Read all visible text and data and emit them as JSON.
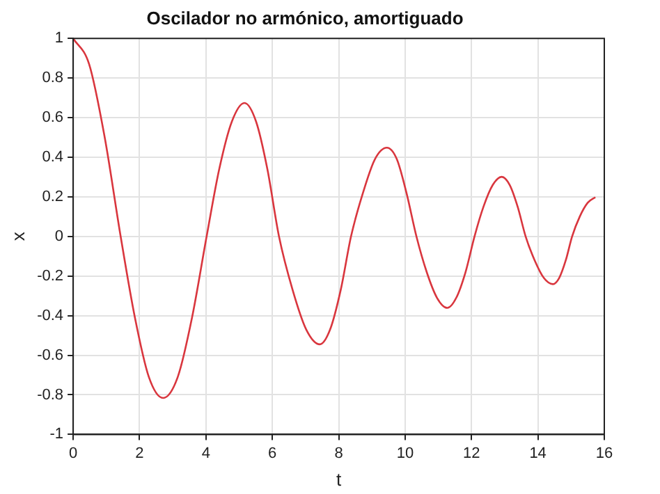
{
  "chart_data": {
    "type": "line",
    "title": "Oscilador no armónico, amortiguado",
    "xlabel": "t",
    "ylabel": "x",
    "x": [
      0,
      0.48,
      0.95,
      1.43,
      1.86,
      2.28,
      2.71,
      3.15,
      3.58,
      4.02,
      4.4,
      4.78,
      5.16,
      5.51,
      5.85,
      6.2,
      6.61,
      7.02,
      7.43,
      7.74,
      8.06,
      8.37,
      8.73,
      9.09,
      9.45,
      9.75,
      10.04,
      10.34,
      10.65,
      10.96,
      11.27,
      11.54,
      11.82,
      12.09,
      12.36,
      12.64,
      12.91,
      13.15,
      13.39,
      13.63,
      13.9,
      14.18,
      14.45,
      14.64,
      14.84,
      15.03,
      15.26,
      15.5,
      15.73
    ],
    "series": [
      {
        "color": "#d9363e",
        "values": [
          1,
          0.87,
          0.5,
          0,
          -0.41,
          -0.71,
          -0.816,
          -0.71,
          -0.41,
          0,
          0.34,
          0.58,
          0.674,
          0.58,
          0.34,
          0,
          -0.27,
          -0.47,
          -0.545,
          -0.47,
          -0.27,
          0,
          0.22,
          0.39,
          0.448,
          0.39,
          0.22,
          0,
          -0.18,
          -0.31,
          -0.361,
          -0.31,
          -0.18,
          0,
          0.15,
          0.26,
          0.301,
          0.26,
          0.15,
          0,
          -0.12,
          -0.21,
          -0.241,
          -0.21,
          -0.12,
          0,
          0.1,
          0.17,
          0.198
        ]
      }
    ],
    "xlim": [
      0,
      16
    ],
    "xticks": [
      0,
      2,
      4,
      6,
      8,
      10,
      12,
      14,
      16
    ],
    "ylim": [
      -1,
      1
    ],
    "yticks": [
      -1,
      -0.8,
      -0.6,
      -0.4,
      -0.2,
      0,
      0.2,
      0.4,
      0.6,
      0.8,
      1
    ],
    "grid": true,
    "legend": false,
    "marker": "none",
    "line_style": "solid"
  }
}
